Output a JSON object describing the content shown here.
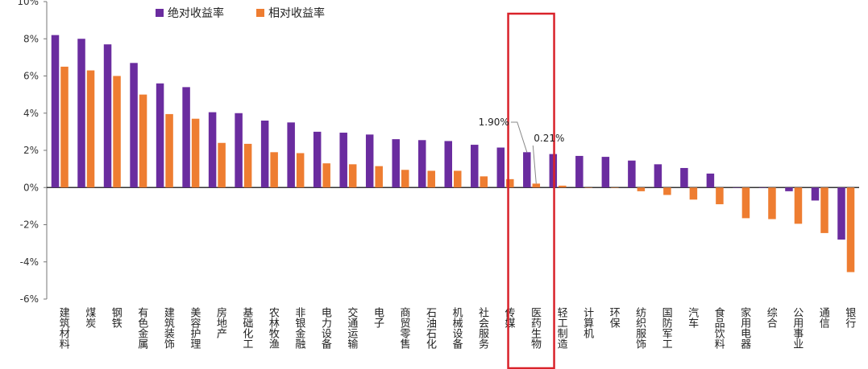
{
  "chart_data": {
    "type": "bar",
    "title": "",
    "xlabel": "",
    "ylabel": "",
    "ylim": [
      -6,
      10
    ],
    "yticks": [
      -6,
      -4,
      -2,
      0,
      2,
      4,
      6,
      8,
      10
    ],
    "ytick_labels": [
      "-6%",
      "-4%",
      "-2%",
      "0%",
      "2%",
      "4%",
      "6%",
      "8%",
      "10%"
    ],
    "grid": false,
    "legend_position": "top-left",
    "categories": [
      "建筑材料",
      "煤炭",
      "钢铁",
      "有色金属",
      "建筑装饰",
      "美容护理",
      "房地产",
      "基础化工",
      "农林牧渔",
      "非银金融",
      "电力设备",
      "交通运输",
      "电子",
      "商贸零售",
      "石油石化",
      "机械设备",
      "社会服务",
      "传媒",
      "医药生物",
      "轻工制造",
      "计算机",
      "环保",
      "纺织服饰",
      "国防军工",
      "汽车",
      "食品饮料",
      "家用电器",
      "综合",
      "公用事业",
      "通信",
      "银行"
    ],
    "series": [
      {
        "name": "绝对收益率",
        "color": "#6a2c9f",
        "values": [
          8.2,
          8.0,
          7.7,
          6.7,
          5.6,
          5.4,
          4.05,
          4.0,
          3.6,
          3.5,
          3.0,
          2.95,
          2.85,
          2.6,
          2.55,
          2.5,
          2.3,
          2.15,
          1.9,
          1.8,
          1.7,
          1.65,
          1.45,
          1.25,
          1.05,
          0.75,
          0.0,
          0.0,
          -0.2,
          -0.7,
          -2.8
        ]
      },
      {
        "name": "相对收益率",
        "color": "#ee7d31",
        "values": [
          6.5,
          6.3,
          6.0,
          5.0,
          3.95,
          3.7,
          2.4,
          2.35,
          1.9,
          1.85,
          1.3,
          1.25,
          1.15,
          0.95,
          0.9,
          0.9,
          0.6,
          0.45,
          0.21,
          0.1,
          0.0,
          0.0,
          -0.2,
          -0.4,
          -0.65,
          -0.9,
          -1.65,
          -1.7,
          -1.95,
          -2.45,
          -4.55
        ]
      }
    ],
    "annotations": [
      {
        "text": "1.90%",
        "category": "医药生物",
        "series": "绝对收益率"
      },
      {
        "text": "0.21%",
        "category": "医药生物",
        "series": "相对收益率"
      }
    ],
    "highlight": {
      "category": "医药生物",
      "color": "#d9222a"
    }
  }
}
